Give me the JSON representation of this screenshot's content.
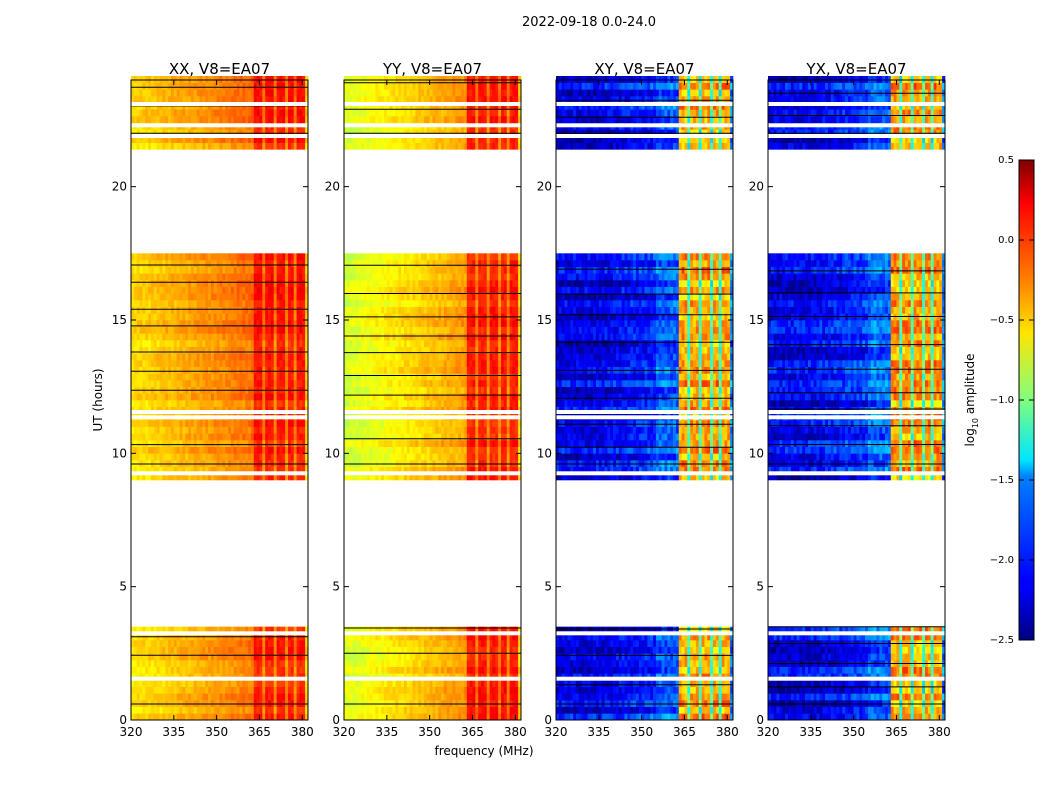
{
  "chart_data": {
    "type": "heatmap",
    "suptitle": "2022-09-18 0.0-24.0",
    "xlabel": "frequency (MHz)",
    "ylabel": "UT (hours)",
    "xlim": [
      320,
      382
    ],
    "ylim": [
      0,
      24
    ],
    "xticks": [
      "320",
      "335",
      "350",
      "365",
      "380"
    ],
    "xtick_values": [
      320,
      335,
      350,
      365,
      380
    ],
    "yticks": [
      "0",
      "5",
      "10",
      "15",
      "20"
    ],
    "ytick_values": [
      0,
      5,
      10,
      15,
      20
    ],
    "data_blocks_hours": [
      [
        0,
        3.5
      ],
      [
        9.0,
        17.3
      ],
      [
        21.4,
        24.0
      ]
    ],
    "panels": [
      {
        "title": "XX, V8=EA07",
        "pol": "XX",
        "kind": "auto"
      },
      {
        "title": "YY, V8=EA07",
        "pol": "YY",
        "kind": "auto"
      },
      {
        "title": "XY, V8=EA07",
        "pol": "XY",
        "kind": "cross"
      },
      {
        "title": "YX, V8=EA07",
        "pol": "YX",
        "kind": "cross"
      }
    ],
    "colorbar": {
      "label": "log10 amplitude",
      "label_main": "log",
      "label_sub": "10",
      "label_rest": " amplitude",
      "min": -2.5,
      "max": 0.5,
      "ticks": [
        "0.5",
        "0.0",
        "−0.5",
        "−1.0",
        "−1.5",
        "−2.0",
        "−2.5"
      ],
      "tick_values": [
        0.5,
        0.0,
        -0.5,
        -1.0,
        -1.5,
        -2.0,
        -2.5
      ],
      "colormap": "jet"
    }
  }
}
